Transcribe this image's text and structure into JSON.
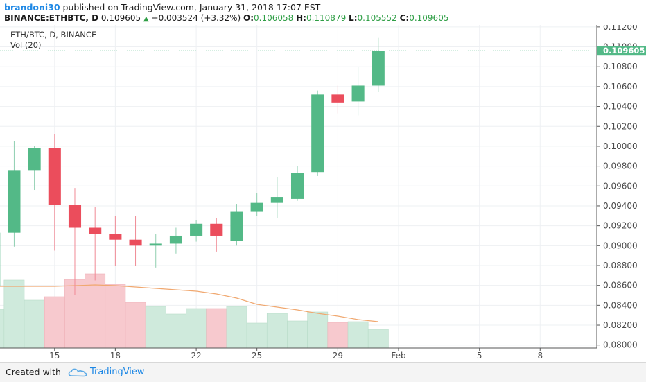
{
  "header": {
    "author": "brandoni30",
    "published_text": "published on TradingView.com, January 31, 2018 17:07 EST",
    "symbol": "BINANCE:ETHBTC, D",
    "price": "0.109605",
    "change": "+0.003524 (+3.32%)",
    "open_label": "O:",
    "open": "0.106058",
    "high_label": "H:",
    "high": "0.110879",
    "low_label": "L:",
    "low": "0.105552",
    "close_label": "C:",
    "close": "0.109605"
  },
  "legend": {
    "series_title": "ETH/BTC, D, BINANCE",
    "volume_title": "Vol (20)"
  },
  "footer": {
    "created_with": "Created with",
    "brand": "TradingView"
  },
  "colors": {
    "up": "#53b987",
    "down": "#eb4d5c",
    "vol_up": "#cfeadc",
    "vol_down": "#f7c9ce",
    "ma": "#f0a870",
    "price_tag": "#53b987",
    "axis_text": "#4a4a4a",
    "grid": "#eef0f3"
  },
  "chart_data": {
    "type": "candlestick",
    "y_axis_ticks": [
      "0.11200",
      "0.11000",
      "0.10800",
      "0.10600",
      "0.10400",
      "0.10200",
      "0.10000",
      "0.09800",
      "0.09600",
      "0.09400",
      "0.09200",
      "0.09000",
      "0.08800",
      "0.08600",
      "0.08400",
      "0.08200",
      "0.08000"
    ],
    "ylim": [
      0.0797,
      0.1122
    ],
    "x_axis_ticks": [
      {
        "label": "15",
        "day": 15
      },
      {
        "label": "18",
        "day": 18
      },
      {
        "label": "22",
        "day": 22
      },
      {
        "label": "25",
        "day": 25
      },
      {
        "label": "29",
        "day": 29
      },
      {
        "label": "Feb",
        "day": 32
      },
      {
        "label": "5",
        "day": 36
      },
      {
        "label": "8",
        "day": 39
      }
    ],
    "x_range_days": [
      12.3,
      41.8
    ],
    "last_price_label": "0.109605",
    "candles": [
      {
        "day": 12,
        "open": 0.0859,
        "high": 0.092,
        "low": 0.0849,
        "close": 0.0913
      },
      {
        "day": 13,
        "open": 0.0913,
        "high": 0.1005,
        "low": 0.0899,
        "close": 0.0976
      },
      {
        "day": 14,
        "open": 0.0976,
        "high": 0.1,
        "low": 0.0956,
        "close": 0.0998
      },
      {
        "day": 15,
        "open": 0.0998,
        "high": 0.1012,
        "low": 0.0895,
        "close": 0.0941
      },
      {
        "day": 16,
        "open": 0.0941,
        "high": 0.0958,
        "low": 0.085,
        "close": 0.0918
      },
      {
        "day": 17,
        "open": 0.0918,
        "high": 0.0939,
        "low": 0.0865,
        "close": 0.0912
      },
      {
        "day": 18,
        "open": 0.0912,
        "high": 0.093,
        "low": 0.088,
        "close": 0.0906
      },
      {
        "day": 19,
        "open": 0.0906,
        "high": 0.093,
        "low": 0.088,
        "close": 0.09
      },
      {
        "day": 20,
        "open": 0.09,
        "high": 0.0912,
        "low": 0.0878,
        "close": 0.0902
      },
      {
        "day": 21,
        "open": 0.0902,
        "high": 0.0918,
        "low": 0.0892,
        "close": 0.091
      },
      {
        "day": 22,
        "open": 0.091,
        "high": 0.0926,
        "low": 0.0904,
        "close": 0.0922
      },
      {
        "day": 23,
        "open": 0.0922,
        "high": 0.0928,
        "low": 0.0894,
        "close": 0.091
      },
      {
        "day": 24,
        "open": 0.0905,
        "high": 0.0942,
        "low": 0.09,
        "close": 0.0934
      },
      {
        "day": 25,
        "open": 0.0934,
        "high": 0.0953,
        "low": 0.093,
        "close": 0.0943
      },
      {
        "day": 26,
        "open": 0.0943,
        "high": 0.0969,
        "low": 0.0928,
        "close": 0.0949
      },
      {
        "day": 27,
        "open": 0.0947,
        "high": 0.098,
        "low": 0.0945,
        "close": 0.0973
      },
      {
        "day": 28,
        "open": 0.0974,
        "high": 0.1056,
        "low": 0.097,
        "close": 0.1052
      },
      {
        "day": 29,
        "open": 0.1052,
        "high": 0.1061,
        "low": 0.1033,
        "close": 0.1044
      },
      {
        "day": 30,
        "open": 0.1045,
        "high": 0.108,
        "low": 0.1031,
        "close": 0.1061
      },
      {
        "day": 31,
        "open": 0.1061,
        "high": 0.1109,
        "low": 0.1055,
        "close": 0.1096
      }
    ],
    "volume": [
      {
        "day": 12,
        "level": 0.56,
        "up": true
      },
      {
        "day": 13,
        "level": 0.98,
        "up": true
      },
      {
        "day": 14,
        "level": 0.69,
        "up": true
      },
      {
        "day": 15,
        "level": 0.74,
        "up": false
      },
      {
        "day": 16,
        "level": 0.99,
        "up": false
      },
      {
        "day": 17,
        "level": 1.07,
        "up": false
      },
      {
        "day": 18,
        "level": 0.92,
        "up": false
      },
      {
        "day": 19,
        "level": 0.66,
        "up": false
      },
      {
        "day": 20,
        "level": 0.6,
        "up": true
      },
      {
        "day": 21,
        "level": 0.49,
        "up": true
      },
      {
        "day": 22,
        "level": 0.57,
        "up": true
      },
      {
        "day": 23,
        "level": 0.57,
        "up": false
      },
      {
        "day": 24,
        "level": 0.6,
        "up": true
      },
      {
        "day": 25,
        "level": 0.36,
        "up": true
      },
      {
        "day": 26,
        "level": 0.5,
        "up": true
      },
      {
        "day": 27,
        "level": 0.39,
        "up": true
      },
      {
        "day": 28,
        "level": 0.52,
        "up": true
      },
      {
        "day": 29,
        "level": 0.37,
        "up": false
      },
      {
        "day": 30,
        "level": 0.38,
        "up": true
      },
      {
        "day": 31,
        "level": 0.27,
        "up": true
      }
    ],
    "volume_ma": [
      0.89,
      0.89,
      0.89,
      0.89,
      0.9,
      0.91,
      0.9,
      0.88,
      0.86,
      0.84,
      0.82,
      0.78,
      0.72,
      0.63,
      0.59,
      0.55,
      0.5,
      0.46,
      0.41,
      0.38
    ]
  }
}
